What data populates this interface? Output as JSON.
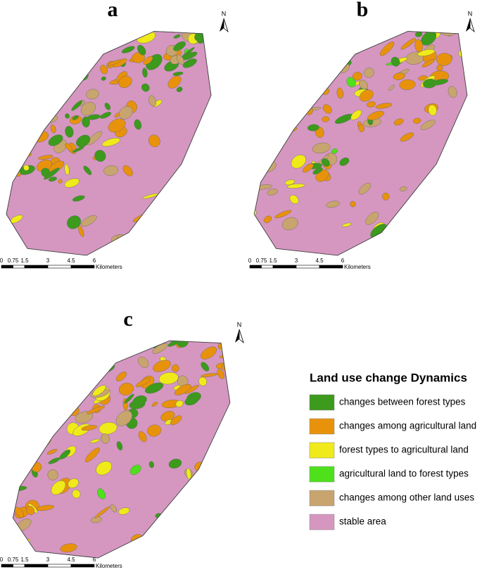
{
  "panels": [
    {
      "label": "a",
      "north": "N",
      "scale_labels": [
        "0",
        "0.75",
        "1.5",
        "3",
        "4.5",
        "6"
      ],
      "scale_unit": "Kilometers"
    },
    {
      "label": "b",
      "north": "N",
      "scale_labels": [
        "0",
        "0.75",
        "1.5",
        "3",
        "4.5",
        "6"
      ],
      "scale_unit": "Kilometers"
    },
    {
      "label": "c",
      "north": "N",
      "scale_labels": [
        "0",
        "0.75",
        "1.5",
        "3",
        "4.5",
        "6"
      ],
      "scale_unit": "Kilometers"
    }
  ],
  "legend": {
    "title": "Land use change Dynamics",
    "items": [
      {
        "label": "changes between forest types",
        "color": "#3c9a1c"
      },
      {
        "label": "changes among agricultural land",
        "color": "#e8920c"
      },
      {
        "label": "forest types to agricultural land",
        "color": "#f0ea1a"
      },
      {
        "label": "agricultural land to forest types",
        "color": "#4fe01c"
      },
      {
        "label": "changes among other land uses",
        "color": "#c8a46e"
      },
      {
        "label": "stable area",
        "color": "#d597c0"
      }
    ]
  }
}
